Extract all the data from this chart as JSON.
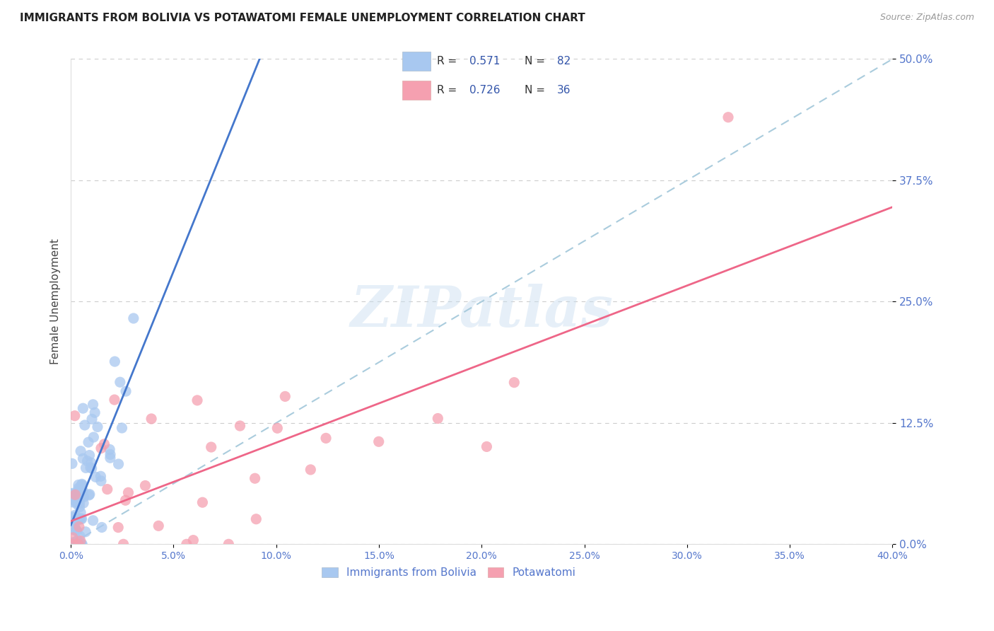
{
  "title": "IMMIGRANTS FROM BOLIVIA VS POTAWATOMI FEMALE UNEMPLOYMENT CORRELATION CHART",
  "source": "Source: ZipAtlas.com",
  "ylabel": "Female Unemployment",
  "watermark": "ZIPatlas",
  "series1_label": "Immigrants from Bolivia",
  "series1_R": "0.571",
  "series1_N": "82",
  "series2_label": "Potawatomi",
  "series2_R": "0.726",
  "series2_N": "36",
  "series1_color": "#a8c8f0",
  "series2_color": "#f5a0b0",
  "reg1_color": "#4477cc",
  "reg2_color": "#ee6688",
  "diagonal_color": "#aaccdd",
  "xmin": 0.0,
  "xmax": 0.4,
  "ymin": 0.0,
  "ymax": 0.5,
  "yticks": [
    0.0,
    0.125,
    0.25,
    0.375,
    0.5
  ],
  "xticks": [
    0.0,
    0.05,
    0.1,
    0.15,
    0.2,
    0.25,
    0.3,
    0.35,
    0.4
  ],
  "title_fontsize": 11,
  "source_fontsize": 9,
  "background_color": "#ffffff",
  "grid_color": "#cccccc",
  "tick_label_color": "#5577cc",
  "legend_text_color": "#3355aa",
  "legend_box_color": "#cccccc"
}
